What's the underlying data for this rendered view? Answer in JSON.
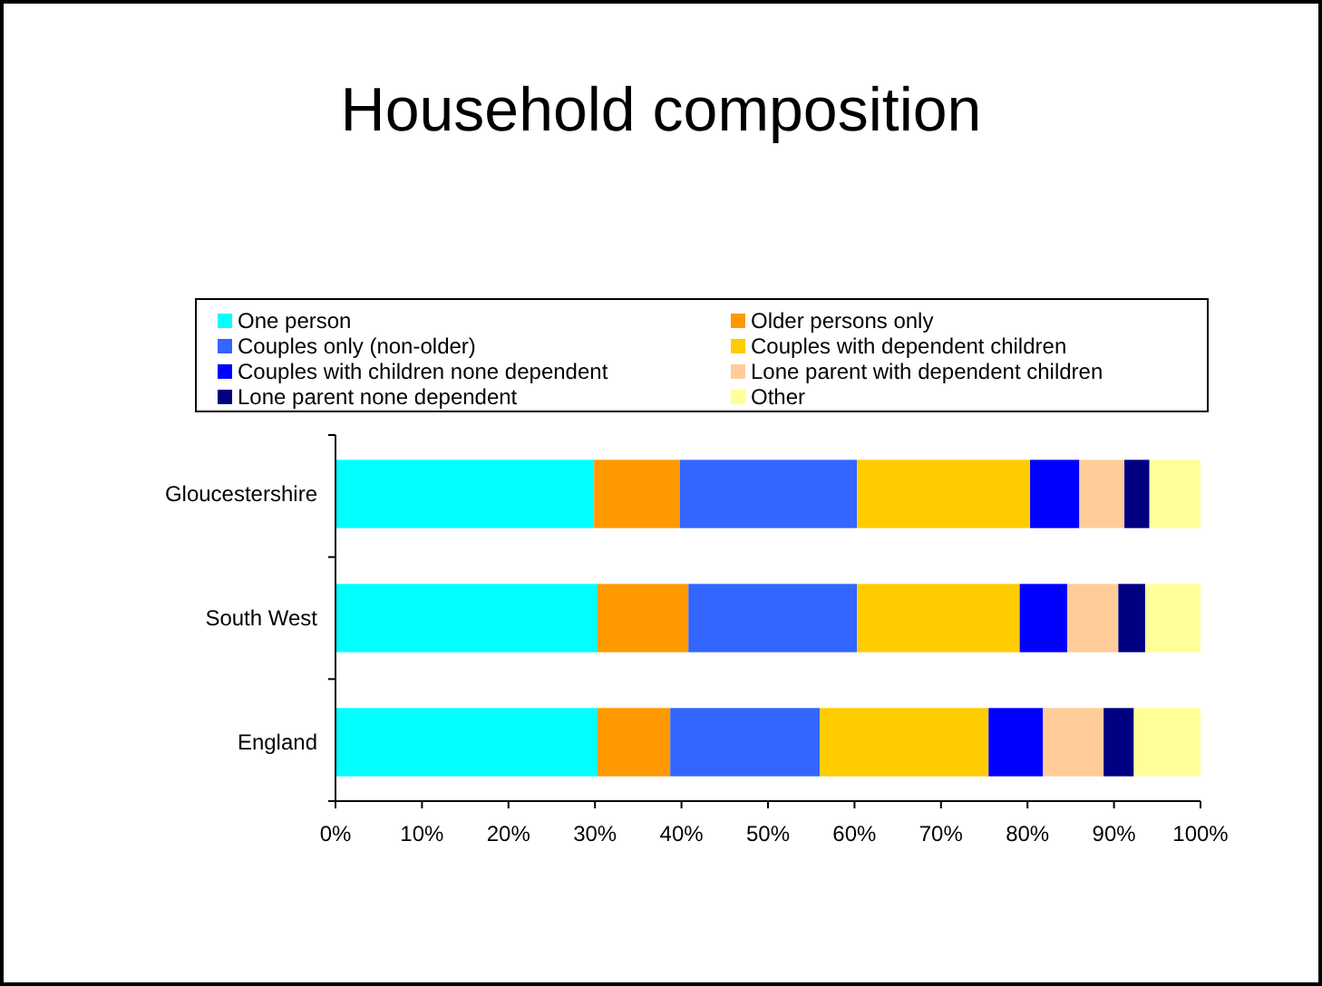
{
  "chart_data": {
    "type": "bar",
    "title": "Household composition",
    "orientation": "horizontal",
    "stacked": true,
    "categories": [
      "Gloucestershire",
      "South West",
      "England"
    ],
    "series": [
      {
        "name": "One person",
        "color": "#00ffff",
        "values": [
          29.9,
          30.3,
          30.3
        ]
      },
      {
        "name": "Older persons only",
        "color": "#ff9900",
        "values": [
          9.9,
          10.5,
          8.4
        ]
      },
      {
        "name": "Couples only (non-older)",
        "color": "#3366ff",
        "values": [
          20.5,
          19.5,
          17.3
        ]
      },
      {
        "name": "Couples with dependent children",
        "color": "#ffcc00",
        "values": [
          20.0,
          18.8,
          19.5
        ]
      },
      {
        "name": "Couples with children none dependent",
        "color": "#0000ff",
        "values": [
          5.7,
          5.5,
          6.3
        ]
      },
      {
        "name": "Lone parent with dependent children",
        "color": "#ffcc99",
        "values": [
          5.2,
          5.9,
          7.0
        ]
      },
      {
        "name": "Lone parent none dependent",
        "color": "#000080",
        "values": [
          2.9,
          3.1,
          3.5
        ]
      },
      {
        "name": "Other",
        "color": "#ffff99",
        "values": [
          5.9,
          6.4,
          7.7
        ]
      }
    ],
    "xlim": [
      0,
      100
    ],
    "xticks": [
      {
        "value": 0,
        "label": "0%"
      },
      {
        "value": 10,
        "label": "10%"
      },
      {
        "value": 20,
        "label": "20%"
      },
      {
        "value": 30,
        "label": "30%"
      },
      {
        "value": 40,
        "label": "40%"
      },
      {
        "value": 50,
        "label": "50%"
      },
      {
        "value": 60,
        "label": "60%"
      },
      {
        "value": 70,
        "label": "70%"
      },
      {
        "value": 80,
        "label": "80%"
      },
      {
        "value": 90,
        "label": "90%"
      },
      {
        "value": 100,
        "label": "100%"
      }
    ],
    "legend": "top",
    "grid": false
  }
}
